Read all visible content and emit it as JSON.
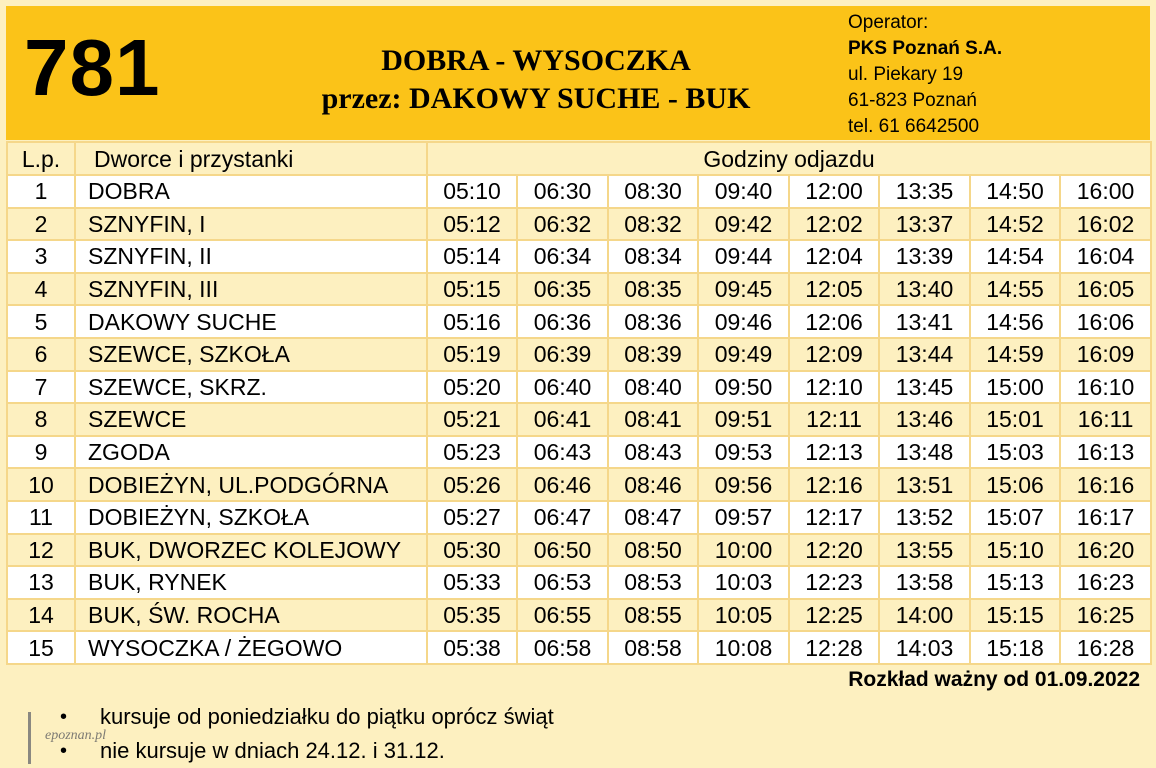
{
  "route": {
    "number": "781",
    "title_line1": "DOBRA - WYSOCZKA",
    "title_line2": "przez: DAKOWY SUCHE - BUK"
  },
  "operator": {
    "label": "Operator:",
    "name": "PKS Poznań S.A.",
    "street": "ul. Piekary 19",
    "city": "61-823 Poznań",
    "phone": "tel. 61 6642500"
  },
  "table": {
    "headers": {
      "lp": "L.p.",
      "stops": "Dworce i przystanki",
      "times": "Godziny odjazdu"
    },
    "rows": [
      {
        "lp": "1",
        "stop": "DOBRA",
        "times": [
          "05:10",
          "06:30",
          "08:30",
          "09:40",
          "12:00",
          "13:35",
          "14:50",
          "16:00"
        ]
      },
      {
        "lp": "2",
        "stop": "SZNYFIN, I",
        "times": [
          "05:12",
          "06:32",
          "08:32",
          "09:42",
          "12:02",
          "13:37",
          "14:52",
          "16:02"
        ]
      },
      {
        "lp": "3",
        "stop": "SZNYFIN, II",
        "times": [
          "05:14",
          "06:34",
          "08:34",
          "09:44",
          "12:04",
          "13:39",
          "14:54",
          "16:04"
        ]
      },
      {
        "lp": "4",
        "stop": "SZNYFIN, III",
        "times": [
          "05:15",
          "06:35",
          "08:35",
          "09:45",
          "12:05",
          "13:40",
          "14:55",
          "16:05"
        ]
      },
      {
        "lp": "5",
        "stop": "DAKOWY SUCHE",
        "times": [
          "05:16",
          "06:36",
          "08:36",
          "09:46",
          "12:06",
          "13:41",
          "14:56",
          "16:06"
        ]
      },
      {
        "lp": "6",
        "stop": "SZEWCE, SZKOŁA",
        "times": [
          "05:19",
          "06:39",
          "08:39",
          "09:49",
          "12:09",
          "13:44",
          "14:59",
          "16:09"
        ]
      },
      {
        "lp": "7",
        "stop": "SZEWCE, SKRZ.",
        "times": [
          "05:20",
          "06:40",
          "08:40",
          "09:50",
          "12:10",
          "13:45",
          "15:00",
          "16:10"
        ]
      },
      {
        "lp": "8",
        "stop": "SZEWCE",
        "times": [
          "05:21",
          "06:41",
          "08:41",
          "09:51",
          "12:11",
          "13:46",
          "15:01",
          "16:11"
        ]
      },
      {
        "lp": "9",
        "stop": "ZGODA",
        "times": [
          "05:23",
          "06:43",
          "08:43",
          "09:53",
          "12:13",
          "13:48",
          "15:03",
          "16:13"
        ]
      },
      {
        "lp": "10",
        "stop": "DOBIEŻYN, UL.PODGÓRNA",
        "times": [
          "05:26",
          "06:46",
          "08:46",
          "09:56",
          "12:16",
          "13:51",
          "15:06",
          "16:16"
        ]
      },
      {
        "lp": "11",
        "stop": "DOBIEŻYN, SZKOŁA",
        "times": [
          "05:27",
          "06:47",
          "08:47",
          "09:57",
          "12:17",
          "13:52",
          "15:07",
          "16:17"
        ]
      },
      {
        "lp": "12",
        "stop": "BUK, DWORZEC KOLEJOWY",
        "times": [
          "05:30",
          "06:50",
          "08:50",
          "10:00",
          "12:20",
          "13:55",
          "15:10",
          "16:20"
        ]
      },
      {
        "lp": "13",
        "stop": "BUK, RYNEK",
        "times": [
          "05:33",
          "06:53",
          "08:53",
          "10:03",
          "12:23",
          "13:58",
          "15:13",
          "16:23"
        ]
      },
      {
        "lp": "14",
        "stop": "BUK, ŚW. ROCHA",
        "times": [
          "05:35",
          "06:55",
          "08:55",
          "10:05",
          "12:25",
          "14:00",
          "15:15",
          "16:25"
        ]
      },
      {
        "lp": "15",
        "stop": "WYSOCZKA / ŻEGOWO",
        "times": [
          "05:38",
          "06:58",
          "08:58",
          "10:08",
          "12:28",
          "14:03",
          "15:18",
          "16:28"
        ]
      }
    ]
  },
  "validity": "Rozkład ważny od 01.09.2022",
  "notes": [
    {
      "bullet": "•",
      "text": "kursuje od poniedziałku do piątku oprócz świąt"
    },
    {
      "bullet": "•",
      "text": "nie kursuje w dniach 24.12. i 31.12."
    }
  ],
  "watermark": "epoznan.pl",
  "colors": {
    "header_bg": "#fbc318",
    "row_alt_bg": "#fdf0c0",
    "grid_line": "#f5d78a"
  }
}
